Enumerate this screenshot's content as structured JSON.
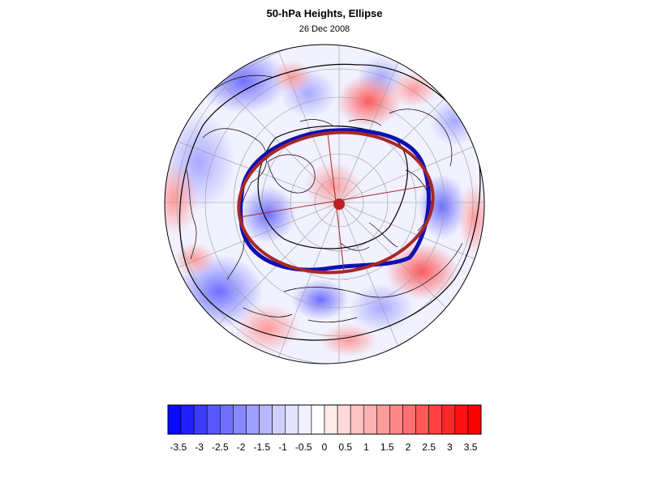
{
  "figure": {
    "title": "50-hPa Heights, Ellipse",
    "subtitle": "26 Dec 2008",
    "projection": "polar-stereographic-north",
    "overlays": [
      "blue-observed-contour",
      "red-fitted-ellipse",
      "ellipse-center-marker",
      "ellipse-axes"
    ]
  },
  "colors": {
    "observed_contour": "#1010b0",
    "ellipse": "#a82828",
    "center_marker": "#c02020"
  },
  "colorbar": {
    "tick_labels": [
      "-3.5",
      "-3",
      "-2.5",
      "-2",
      "-1.5",
      "-1",
      "-0.5",
      "0",
      "0.5",
      "1",
      "1.5",
      "2",
      "2.5",
      "3",
      "3.5"
    ],
    "levels": [
      -3.5,
      -3,
      -2.5,
      -2,
      -1.5,
      -1,
      -0.5,
      0,
      0.5,
      1,
      1.5,
      2,
      2.5,
      3,
      3.5
    ],
    "color_stops": [
      "#0a0aff",
      "#2020ff",
      "#3c3cff",
      "#5858ff",
      "#7070ff",
      "#8888ff",
      "#a0a0ff",
      "#b8b8ff",
      "#d0d0ff",
      "#e4e4ff",
      "#f2f2ff",
      "#ffffff",
      "#ffeaea",
      "#ffd8d8",
      "#ffc4c4",
      "#ffb0b0",
      "#ff9c9c",
      "#ff8888",
      "#ff7070",
      "#ff5858",
      "#ff4040",
      "#ff2828",
      "#ff1010",
      "#ff0000"
    ]
  }
}
